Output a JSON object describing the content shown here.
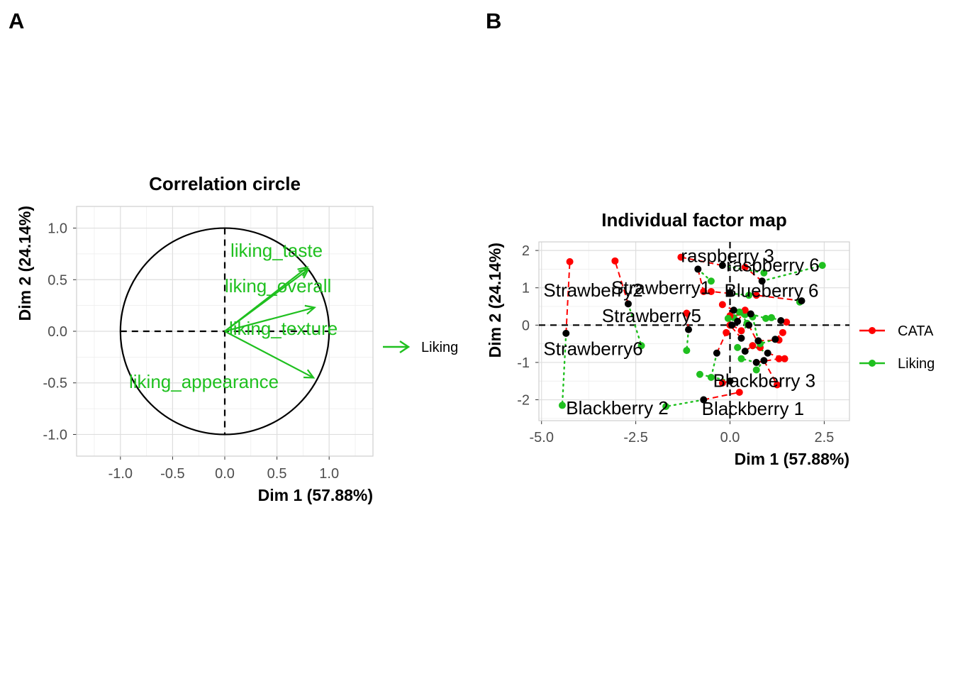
{
  "panel_a_tag": "A",
  "panel_b_tag": "B",
  "colors": {
    "liking": "#1fc01f",
    "cata": "#ff0000",
    "mean": "#000000"
  },
  "legend_a": {
    "label": "Liking"
  },
  "legend_b": {
    "items": [
      "CATA",
      "Liking"
    ]
  },
  "chart_data": [
    {
      "type": "scatter",
      "subtype": "correlation circle",
      "title": "Correlation circle",
      "xlabel": "Dim 1 (57.88%)",
      "ylabel": "Dim 2 (24.14%)",
      "xlim": [
        -1.42,
        1.42
      ],
      "ylim": [
        -1.21,
        1.21
      ],
      "xticks": [
        -1.0,
        -0.5,
        0.0,
        0.5,
        1.0
      ],
      "xtick_labels": [
        "-1.0",
        "-0.5",
        "0.0",
        "0.5",
        "1.0"
      ],
      "yticks": [
        -1.0,
        -0.5,
        0.0,
        0.5,
        1.0
      ],
      "ytick_labels": [
        "-1.0",
        "-0.5",
        "0.0",
        "0.5",
        "1.0"
      ],
      "grid": true,
      "legend_placement": "right",
      "series": [
        {
          "name": "Liking",
          "vectors": [
            {
              "label": "liking_taste",
              "x": 0.79,
              "y": 0.62
            },
            {
              "label": "liking_overall",
              "x": 0.8,
              "y": 0.6
            },
            {
              "label": "liking_texture",
              "x": 0.86,
              "y": 0.23
            },
            {
              "label": "liking_appearance",
              "x": 0.85,
              "y": -0.45
            }
          ]
        }
      ]
    },
    {
      "type": "scatter",
      "subtype": "individual factor map",
      "title": "Individual factor map",
      "xlabel": "Dim 1 (57.88%)",
      "ylabel": "Dim 2 (24.14%)",
      "xlim": [
        -5.07,
        3.17
      ],
      "ylim": [
        -2.56,
        2.23
      ],
      "xticks": [
        -5.0,
        -2.5,
        0.0,
        2.5
      ],
      "xtick_labels": [
        "-5.0",
        "-2.5",
        "0.0",
        "2.5"
      ],
      "yticks": [
        -2,
        -1,
        0,
        1,
        2
      ],
      "ytick_labels": [
        "-2",
        "-1",
        "0",
        "1",
        "2"
      ],
      "grid": true,
      "legend_placement": "right",
      "individuals": [
        {
          "label": "raspberry 3",
          "x": -0.2,
          "y": 1.6,
          "cata": [
            -1.3,
            1.82
          ],
          "liking": [
            0.9,
            1.4
          ]
        },
        {
          "label": "raspberry 6",
          "x": 0.85,
          "y": 1.18,
          "cata": [
            0.4,
            1.55
          ],
          "liking": [
            2.45,
            1.6
          ]
        },
        {
          "label": "Strawberry2",
          "x": -2.7,
          "y": 0.57,
          "cata": [
            -3.05,
            1.72
          ],
          "liking": [
            -2.35,
            -0.55
          ]
        },
        {
          "label": "Strawberry1",
          "x": -0.85,
          "y": 1.5,
          "cata": [
            -0.7,
            0.9
          ],
          "liking": [
            -0.5,
            1.18
          ]
        },
        {
          "label": "Blueberry 6",
          "x": 1.9,
          "y": 0.65,
          "cata": [
            0.7,
            0.8
          ],
          "liking": [
            1.85,
            0.62
          ]
        },
        {
          "label": "Strawberry5",
          "x": -1.1,
          "y": -0.12,
          "cata": [
            -1.15,
            0.32
          ],
          "liking": [
            -1.15,
            -0.68
          ]
        },
        {
          "label": "Strawberry6",
          "x": -4.35,
          "y": -0.22,
          "cata": [
            -4.25,
            1.7
          ],
          "liking": [
            -4.45,
            -2.15
          ]
        },
        {
          "label": "Blackberry 3",
          "x": 0.9,
          "y": -0.95,
          "cata": [
            1.25,
            -1.6
          ],
          "liking": [
            0.7,
            -1.2
          ]
        },
        {
          "label": "Blackberry 2",
          "x": -0.7,
          "y": -2.0,
          "cata": [
            0.25,
            -1.8
          ],
          "liking": [
            -1.7,
            -2.18
          ]
        },
        {
          "label": "Blackberry 1",
          "x": 0.0,
          "y": -1.5,
          "cata": [
            -0.2,
            -1.55
          ],
          "liking": [
            -0.8,
            -1.32
          ]
        }
      ],
      "unlabeled_individuals": [
        {
          "x": 0.0,
          "y": 0.85,
          "cata": [
            -0.5,
            0.9
          ],
          "liking": [
            0.5,
            0.8
          ]
        },
        {
          "x": 0.1,
          "y": 0.4,
          "cata": [
            -0.2,
            0.55
          ],
          "liking": [
            0.4,
            0.28
          ]
        },
        {
          "x": 0.2,
          "y": 0.1,
          "cata": [
            0.4,
            0.4
          ],
          "liking": [
            0.1,
            0.2
          ]
        },
        {
          "x": 0.55,
          "y": 0.3,
          "cata": [
            0.0,
            0.25
          ],
          "liking": [
            0.95,
            0.18
          ]
        },
        {
          "x": 0.3,
          "y": -0.35,
          "cata": [
            0.0,
            0.0
          ],
          "liking": [
            0.45,
            0.05
          ]
        },
        {
          "x": 0.5,
          "y": 0.0,
          "cata": [
            0.8,
            -0.6
          ],
          "liking": [
            0.25,
            0.35
          ]
        },
        {
          "x": 0.75,
          "y": -0.42,
          "cata": [
            1.3,
            -0.4
          ],
          "liking": [
            0.6,
            0.22
          ]
        },
        {
          "x": -0.35,
          "y": -0.75,
          "cata": [
            -0.1,
            -0.2
          ],
          "liking": [
            -0.5,
            -1.4
          ]
        },
        {
          "x": 1.35,
          "y": 0.12,
          "cata": [
            1.5,
            0.08
          ],
          "liking": [
            1.1,
            0.2
          ]
        },
        {
          "x": 1.2,
          "y": -0.38,
          "cata": [
            1.4,
            -0.2
          ],
          "liking": [
            0.8,
            -0.5
          ]
        },
        {
          "x": 1.0,
          "y": -0.75,
          "cata": [
            1.45,
            -0.9
          ],
          "liking": [
            0.6,
            -0.55
          ]
        },
        {
          "x": 0.7,
          "y": -1.0,
          "cata": [
            1.3,
            -0.9
          ],
          "liking": [
            0.3,
            -0.9
          ]
        },
        {
          "x": 0.4,
          "y": -0.7,
          "cata": [
            0.6,
            -0.55
          ],
          "liking": [
            0.2,
            -0.6
          ]
        },
        {
          "x": 0.05,
          "y": 0.0,
          "cata": [
            0.3,
            -0.15
          ],
          "liking": [
            -0.05,
            0.18
          ]
        }
      ]
    }
  ]
}
